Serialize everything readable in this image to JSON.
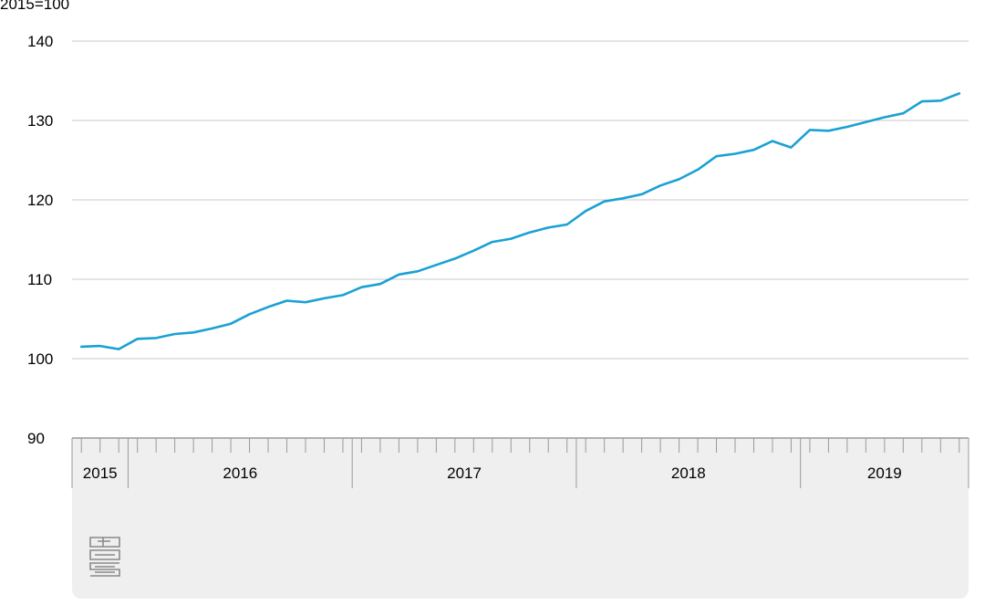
{
  "logo": {
    "icon": "cbs-logo-icon",
    "text": "cbs"
  },
  "chart_data": {
    "type": "line",
    "title": "",
    "unit_label": "2015=100",
    "xlabel": "",
    "ylabel": "",
    "ylim": [
      90,
      140
    ],
    "yticks": [
      "90",
      "100",
      "110",
      "120",
      "130",
      "140"
    ],
    "year_labels": [
      {
        "label": "2015",
        "start": 0,
        "end": 3
      },
      {
        "label": "2016",
        "start": 3,
        "end": 15
      },
      {
        "label": "2017",
        "start": 15,
        "end": 27
      },
      {
        "label": "2018",
        "start": 27,
        "end": 39
      },
      {
        "label": "2019",
        "start": 39,
        "end": 48
      }
    ],
    "x": [
      "2015-10",
      "2015-11",
      "2015-12",
      "2016-01",
      "2016-02",
      "2016-03",
      "2016-04",
      "2016-05",
      "2016-06",
      "2016-07",
      "2016-08",
      "2016-09",
      "2016-10",
      "2016-11",
      "2016-12",
      "2017-01",
      "2017-02",
      "2017-03",
      "2017-04",
      "2017-05",
      "2017-06",
      "2017-07",
      "2017-08",
      "2017-09",
      "2017-10",
      "2017-11",
      "2017-12",
      "2018-01",
      "2018-02",
      "2018-03",
      "2018-04",
      "2018-05",
      "2018-06",
      "2018-07",
      "2018-08",
      "2018-09",
      "2018-10",
      "2018-11",
      "2018-12",
      "2019-01",
      "2019-02",
      "2019-03",
      "2019-04",
      "2019-05",
      "2019-06",
      "2019-07",
      "2019-08",
      "2019-09"
    ],
    "series": [
      {
        "name": "",
        "color": "#1aa1d4",
        "values": [
          101.5,
          101.6,
          101.2,
          102.5,
          102.6,
          103.1,
          103.3,
          103.8,
          104.4,
          105.6,
          106.5,
          107.3,
          107.1,
          107.6,
          108.0,
          109.0,
          109.4,
          110.6,
          111.0,
          111.8,
          112.6,
          113.6,
          114.7,
          115.1,
          115.9,
          116.5,
          116.9,
          118.6,
          119.8,
          120.2,
          120.7,
          121.8,
          122.6,
          123.8,
          125.5,
          125.8,
          126.3,
          127.4,
          126.6,
          128.8,
          128.7,
          129.2,
          129.8,
          130.4,
          130.9,
          132.4,
          132.5,
          133.4
        ]
      }
    ],
    "grid": true,
    "gridline_color": "#c8c8c8",
    "axis_color": "#9a9a9a",
    "legend": "none"
  }
}
